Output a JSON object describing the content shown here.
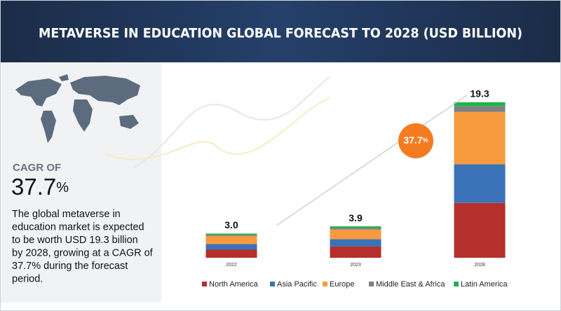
{
  "header": {
    "title": "METAVERSE IN EDUCATION GLOBAL FORECAST TO 2028 (USD BILLION)"
  },
  "sidebar": {
    "cagr_label": "CAGR OF",
    "cagr_value": "37.7",
    "cagr_unit": "%",
    "description": [
      "The global metaverse in",
      "education market is expected",
      "to be worth USD 19.3 billion",
      "by 2028, growing at a CAGR of",
      "37.7% during the forecast",
      "period."
    ]
  },
  "chart_data": {
    "type": "stacked_bar",
    "categories": [
      "2022",
      "2023",
      "2028"
    ],
    "series": [
      {
        "name": "North America",
        "color": "#b5302a",
        "values": [
          1.0,
          1.4,
          6.8
        ]
      },
      {
        "name": "Asia Pacific",
        "color": "#3a72b8",
        "values": [
          0.7,
          0.9,
          4.8
        ]
      },
      {
        "name": "Europe",
        "color": "#f79a3e",
        "values": [
          1.0,
          1.2,
          6.5
        ]
      },
      {
        "name": "Middle East & Africa",
        "color": "#808080",
        "values": [
          0.15,
          0.2,
          0.7
        ]
      },
      {
        "name": "Latin America",
        "color": "#22b14c",
        "values": [
          0.15,
          0.2,
          0.5
        ]
      }
    ],
    "totals": [
      3.0,
      3.9,
      19.3
    ],
    "total_labels": [
      "3.0",
      "3.9",
      "19.3"
    ],
    "cagr_badge": {
      "value": "37.7",
      "unit": "%",
      "color": "#f47b20"
    },
    "legend": "bottom"
  }
}
